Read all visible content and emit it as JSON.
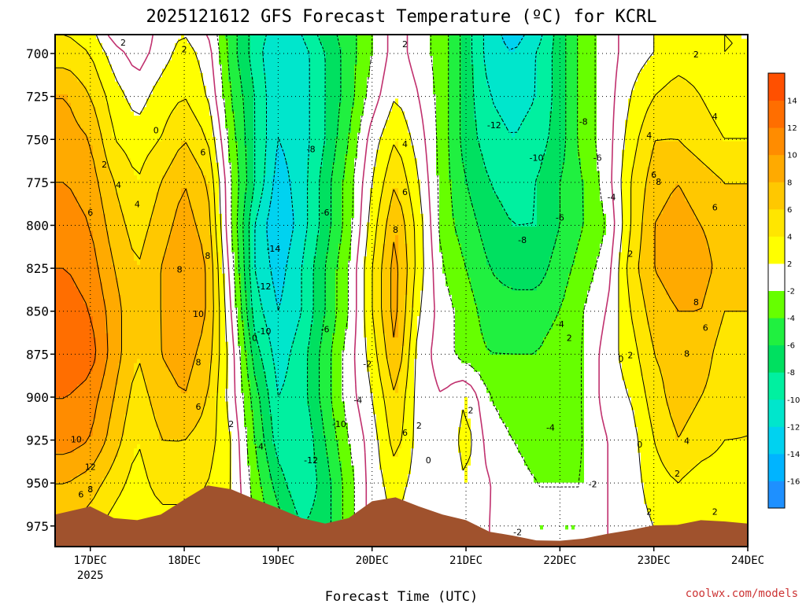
{
  "page": {
    "title": "2025121612 GFS Forecast Temperature (ºC) for KCRL",
    "credit": "coolwx.com/models"
  },
  "chart_data": {
    "type": "heatmap",
    "title": "2025121612 GFS Forecast Temperature (ºC) for KCRL",
    "xlabel": "Forecast Time (UTC)",
    "ylabel": "",
    "x_unit": "days since 17 DEC 2025 00 UTC",
    "xlim": [
      -0.375,
      7.0
    ],
    "ylim": [
      987,
      689
    ],
    "y_ticks": [
      700,
      725,
      750,
      775,
      800,
      825,
      850,
      875,
      900,
      925,
      950,
      975
    ],
    "x_ticks": [
      {
        "x": 0,
        "label": "17DEC",
        "sublabel": "2025"
      },
      {
        "x": 1,
        "label": "18DEC",
        "sublabel": ""
      },
      {
        "x": 2,
        "label": "19DEC",
        "sublabel": ""
      },
      {
        "x": 3,
        "label": "20DEC",
        "sublabel": ""
      },
      {
        "x": 4,
        "label": "21DEC",
        "sublabel": ""
      },
      {
        "x": 5,
        "label": "22DEC",
        "sublabel": ""
      },
      {
        "x": 6,
        "label": "23DEC",
        "sublabel": ""
      },
      {
        "x": 7,
        "label": "24DEC",
        "sublabel": ""
      }
    ],
    "grid": true,
    "colorbar": {
      "levels": [
        -18,
        -16,
        -14,
        -12,
        -10,
        -8,
        -6,
        -4,
        -2,
        2,
        4,
        6,
        8,
        10,
        12,
        14,
        16
      ],
      "labels": [
        "-16",
        "-14",
        "-12",
        "-10",
        "-8",
        "-6",
        "-4",
        "-2",
        "2",
        "4",
        "6",
        "8",
        "10",
        "12",
        "14"
      ],
      "colors": [
        "#1e90ff",
        "#00b4ff",
        "#00d2f0",
        "#00e6cc",
        "#00f0a0",
        "#00e060",
        "#20f040",
        "#66ff00",
        "#ffffff",
        "#ffff00",
        "#ffe600",
        "#ffc800",
        "#ffaa00",
        "#ff8c00",
        "#ff6e00",
        "#ff5000"
      ]
    },
    "surface_pressure": {
      "x": [
        -0.375,
        0.0,
        0.25,
        0.5,
        0.75,
        1.0,
        1.25,
        1.5,
        1.75,
        2.0,
        2.25,
        2.5,
        2.75,
        3.0,
        3.25,
        3.5,
        3.75,
        4.0,
        4.25,
        4.5,
        4.75,
        5.0,
        5.25,
        5.5,
        5.75,
        6.0,
        6.25,
        6.5,
        6.75,
        7.0
      ],
      "p": [
        968,
        964,
        970,
        972,
        968,
        960,
        951,
        954,
        959,
        965,
        970,
        974,
        970,
        961,
        958,
        964,
        968,
        972,
        978,
        981,
        983,
        984,
        982,
        980,
        977,
        975,
        974,
        972,
        972,
        974
      ]
    },
    "field": {
      "x": [
        -0.375,
        -0.25,
        0.0,
        0.25,
        0.5,
        0.75,
        1.0,
        1.25,
        1.5,
        1.75,
        2.0,
        2.25,
        2.5,
        2.75,
        3.0,
        3.25,
        3.5,
        3.75,
        4.0,
        4.25,
        4.5,
        4.75,
        5.0,
        5.25,
        5.5,
        5.75,
        6.0,
        6.25,
        6.5,
        6.75,
        7.0
      ],
      "p": [
        689,
        700,
        725,
        750,
        775,
        800,
        825,
        850,
        875,
        900,
        925,
        950,
        975,
        987
      ],
      "values": [
        [
          4,
          4,
          3,
          -1,
          -2,
          1,
          2,
          0,
          -5,
          -9,
          -11,
          -10,
          -7,
          -5,
          -2,
          1,
          -1,
          -3,
          -7,
          -11,
          -13,
          -11,
          -7,
          -3,
          -1,
          1,
          2,
          3,
          3,
          2,
          2
        ],
        [
          5,
          5,
          4,
          1,
          -1,
          1,
          3,
          1,
          -5,
          -9,
          -12,
          -11,
          -8,
          -5,
          -2,
          1,
          -1,
          -3,
          -7,
          -11,
          -12,
          -10,
          -7,
          -3,
          -1,
          1,
          2,
          3,
          3,
          2,
          2
        ],
        [
          8,
          8,
          6,
          3,
          1,
          3,
          4,
          2,
          -4,
          -8,
          -12,
          -11,
          -8,
          -5,
          -1,
          2,
          0,
          -3,
          -7,
          -10,
          -11,
          -10,
          -7,
          -3,
          -1,
          2,
          4,
          5,
          4,
          3,
          3
        ],
        [
          9,
          9,
          8,
          4,
          3,
          4,
          6,
          4,
          -3,
          -8,
          -12,
          -11,
          -8,
          -4,
          1,
          4,
          1,
          -3,
          -7,
          -9,
          -10,
          -9,
          -7,
          -3,
          -1,
          3,
          6,
          6,
          5,
          4,
          4
        ],
        [
          10,
          10,
          9,
          6,
          4,
          6,
          8,
          6,
          -2,
          -8,
          -13,
          -11,
          -7,
          -3,
          2,
          6,
          2,
          -3,
          -6,
          -8,
          -9,
          -8,
          -6,
          -4,
          -1,
          4,
          7,
          8,
          7,
          6,
          6
        ],
        [
          11,
          11,
          10,
          7,
          5,
          7,
          9,
          7,
          -2,
          -10,
          -14,
          -11,
          -7,
          -3,
          3,
          8,
          3,
          -3,
          -5,
          -7,
          -8,
          -8,
          -6,
          -4,
          -2,
          4,
          8,
          9,
          8,
          7,
          7
        ],
        [
          12,
          12,
          11,
          8,
          6,
          8,
          10,
          8,
          -1,
          -10,
          -13,
          -10,
          -6,
          -2,
          4,
          9,
          3,
          -2,
          -4,
          -6,
          -7,
          -7,
          -5,
          -3,
          -1,
          5,
          8,
          9,
          9,
          7,
          7
        ],
        [
          13,
          13,
          12,
          9,
          6,
          8,
          10,
          8,
          0,
          -9,
          -12,
          -10,
          -6,
          -2,
          4,
          9,
          2,
          -1,
          -3,
          -5,
          -5,
          -5,
          -4,
          -2,
          0,
          4,
          7,
          8,
          8,
          6,
          6
        ],
        [
          14,
          14,
          13,
          9,
          6,
          8,
          9,
          7,
          1,
          -7,
          -11,
          -9,
          -5,
          -1,
          3,
          8,
          1,
          -1,
          -3,
          -4,
          -4,
          -4,
          -3,
          -2,
          1,
          3,
          6,
          7,
          7,
          5,
          5
        ],
        [
          12,
          12,
          11,
          8,
          5,
          7,
          8,
          6,
          1,
          -5,
          -10,
          -9,
          -5,
          -1,
          2,
          6,
          1,
          0,
          2,
          -2,
          -3,
          -3,
          -3,
          -2,
          1,
          2,
          5,
          7,
          6,
          5,
          4
        ],
        [
          11,
          11,
          10,
          7,
          4,
          6,
          6,
          5,
          2,
          -4,
          -9,
          -10,
          -6,
          -2,
          1,
          5,
          1,
          0,
          3,
          -1,
          -2,
          -3,
          -3,
          -2,
          0,
          1,
          4,
          6,
          5,
          4,
          4
        ],
        [
          8,
          8,
          7,
          5,
          3,
          5,
          5,
          4,
          2,
          -3,
          -7,
          -10,
          -7,
          -3,
          1,
          3,
          1,
          0,
          2,
          0,
          -1,
          -2,
          -2,
          -2,
          0,
          1,
          3,
          4,
          3,
          3,
          3
        ],
        [
          6,
          6,
          5,
          3,
          2,
          3,
          3,
          3,
          2,
          -2,
          -5,
          -8,
          -7,
          -3,
          1,
          2,
          0,
          0,
          1,
          0,
          -1,
          -2,
          -2,
          -2,
          0,
          1,
          2,
          3,
          2,
          2,
          2
        ],
        [
          5,
          5,
          4,
          2,
          1,
          2,
          2,
          2,
          1,
          -1,
          -4,
          -7,
          -6,
          -2,
          0,
          1,
          0,
          0,
          1,
          0,
          -1,
          -2,
          -2,
          -2,
          0,
          1,
          2,
          2,
          2,
          2,
          2
        ]
      ]
    },
    "contour_labels": [
      {
        "x": -0.15,
        "p": 925,
        "text": "10"
      },
      {
        "x": 0.0,
        "p": 941,
        "text": "12"
      },
      {
        "x": 0.0,
        "p": 954,
        "text": "8"
      },
      {
        "x": -0.1,
        "p": 957,
        "text": "6"
      },
      {
        "x": 0.15,
        "p": 765,
        "text": "2"
      },
      {
        "x": 0.3,
        "p": 777,
        "text": "4"
      },
      {
        "x": 0.5,
        "p": 788,
        "text": "4"
      },
      {
        "x": 0.0,
        "p": 793,
        "text": "6"
      },
      {
        "x": 0.35,
        "p": 694,
        "text": "2"
      },
      {
        "x": 0.7,
        "p": 745,
        "text": "0"
      },
      {
        "x": 1.0,
        "p": 698,
        "text": "2"
      },
      {
        "x": 1.2,
        "p": 758,
        "text": "6"
      },
      {
        "x": 0.95,
        "p": 826,
        "text": "8"
      },
      {
        "x": 1.25,
        "p": 818,
        "text": "8"
      },
      {
        "x": 1.15,
        "p": 852,
        "text": "10"
      },
      {
        "x": 1.15,
        "p": 880,
        "text": "8"
      },
      {
        "x": 1.15,
        "p": 906,
        "text": "6"
      },
      {
        "x": 1.5,
        "p": 916,
        "text": "2"
      },
      {
        "x": 1.75,
        "p": 866,
        "text": "0"
      },
      {
        "x": 2.35,
        "p": 756,
        "text": "-8"
      },
      {
        "x": 1.95,
        "p": 814,
        "text": "-14"
      },
      {
        "x": 1.85,
        "p": 836,
        "text": "-12"
      },
      {
        "x": 1.85,
        "p": 862,
        "text": "-10"
      },
      {
        "x": 1.8,
        "p": 929,
        "text": "-4"
      },
      {
        "x": 2.5,
        "p": 793,
        "text": "-6"
      },
      {
        "x": 2.5,
        "p": 861,
        "text": "-6"
      },
      {
        "x": 2.85,
        "p": 902,
        "text": "-4"
      },
      {
        "x": 2.65,
        "p": 916,
        "text": "-10"
      },
      {
        "x": 2.35,
        "p": 937,
        "text": "-12"
      },
      {
        "x": 2.95,
        "p": 881,
        "text": "-2"
      },
      {
        "x": 3.35,
        "p": 695,
        "text": "2"
      },
      {
        "x": 3.35,
        "p": 753,
        "text": "4"
      },
      {
        "x": 3.35,
        "p": 781,
        "text": "6"
      },
      {
        "x": 3.25,
        "p": 803,
        "text": "8"
      },
      {
        "x": 3.35,
        "p": 921,
        "text": "6"
      },
      {
        "x": 3.5,
        "p": 917,
        "text": "2"
      },
      {
        "x": 3.6,
        "p": 937,
        "text": "0"
      },
      {
        "x": 4.05,
        "p": 908,
        "text": "2"
      },
      {
        "x": 4.3,
        "p": 742,
        "text": "-12"
      },
      {
        "x": 4.75,
        "p": 761,
        "text": "-10"
      },
      {
        "x": 5.25,
        "p": 740,
        "text": "-8"
      },
      {
        "x": 5.4,
        "p": 761,
        "text": "-6"
      },
      {
        "x": 5.55,
        "p": 784,
        "text": "-4"
      },
      {
        "x": 5.0,
        "p": 796,
        "text": "-6"
      },
      {
        "x": 4.6,
        "p": 809,
        "text": "-8"
      },
      {
        "x": 5.0,
        "p": 858,
        "text": "-4"
      },
      {
        "x": 5.1,
        "p": 866,
        "text": "2"
      },
      {
        "x": 4.9,
        "p": 918,
        "text": "-4"
      },
      {
        "x": 5.35,
        "p": 951,
        "text": "-2"
      },
      {
        "x": 4.55,
        "p": 979,
        "text": "-2"
      },
      {
        "x": 5.65,
        "p": 878,
        "text": "0"
      },
      {
        "x": 5.75,
        "p": 876,
        "text": "2"
      },
      {
        "x": 5.75,
        "p": 817,
        "text": "2"
      },
      {
        "x": 5.95,
        "p": 748,
        "text": "4"
      },
      {
        "x": 6.0,
        "p": 771,
        "text": "6"
      },
      {
        "x": 6.05,
        "p": 775,
        "text": "8"
      },
      {
        "x": 6.45,
        "p": 701,
        "text": "2"
      },
      {
        "x": 6.65,
        "p": 737,
        "text": "4"
      },
      {
        "x": 6.65,
        "p": 790,
        "text": "6"
      },
      {
        "x": 6.55,
        "p": 860,
        "text": "6"
      },
      {
        "x": 6.35,
        "p": 875,
        "text": "8"
      },
      {
        "x": 6.45,
        "p": 845,
        "text": "8"
      },
      {
        "x": 6.35,
        "p": 926,
        "text": "4"
      },
      {
        "x": 6.25,
        "p": 945,
        "text": "2"
      },
      {
        "x": 5.85,
        "p": 928,
        "text": "0"
      },
      {
        "x": 5.95,
        "p": 967,
        "text": "2"
      },
      {
        "x": 6.65,
        "p": 967,
        "text": "2"
      }
    ]
  }
}
